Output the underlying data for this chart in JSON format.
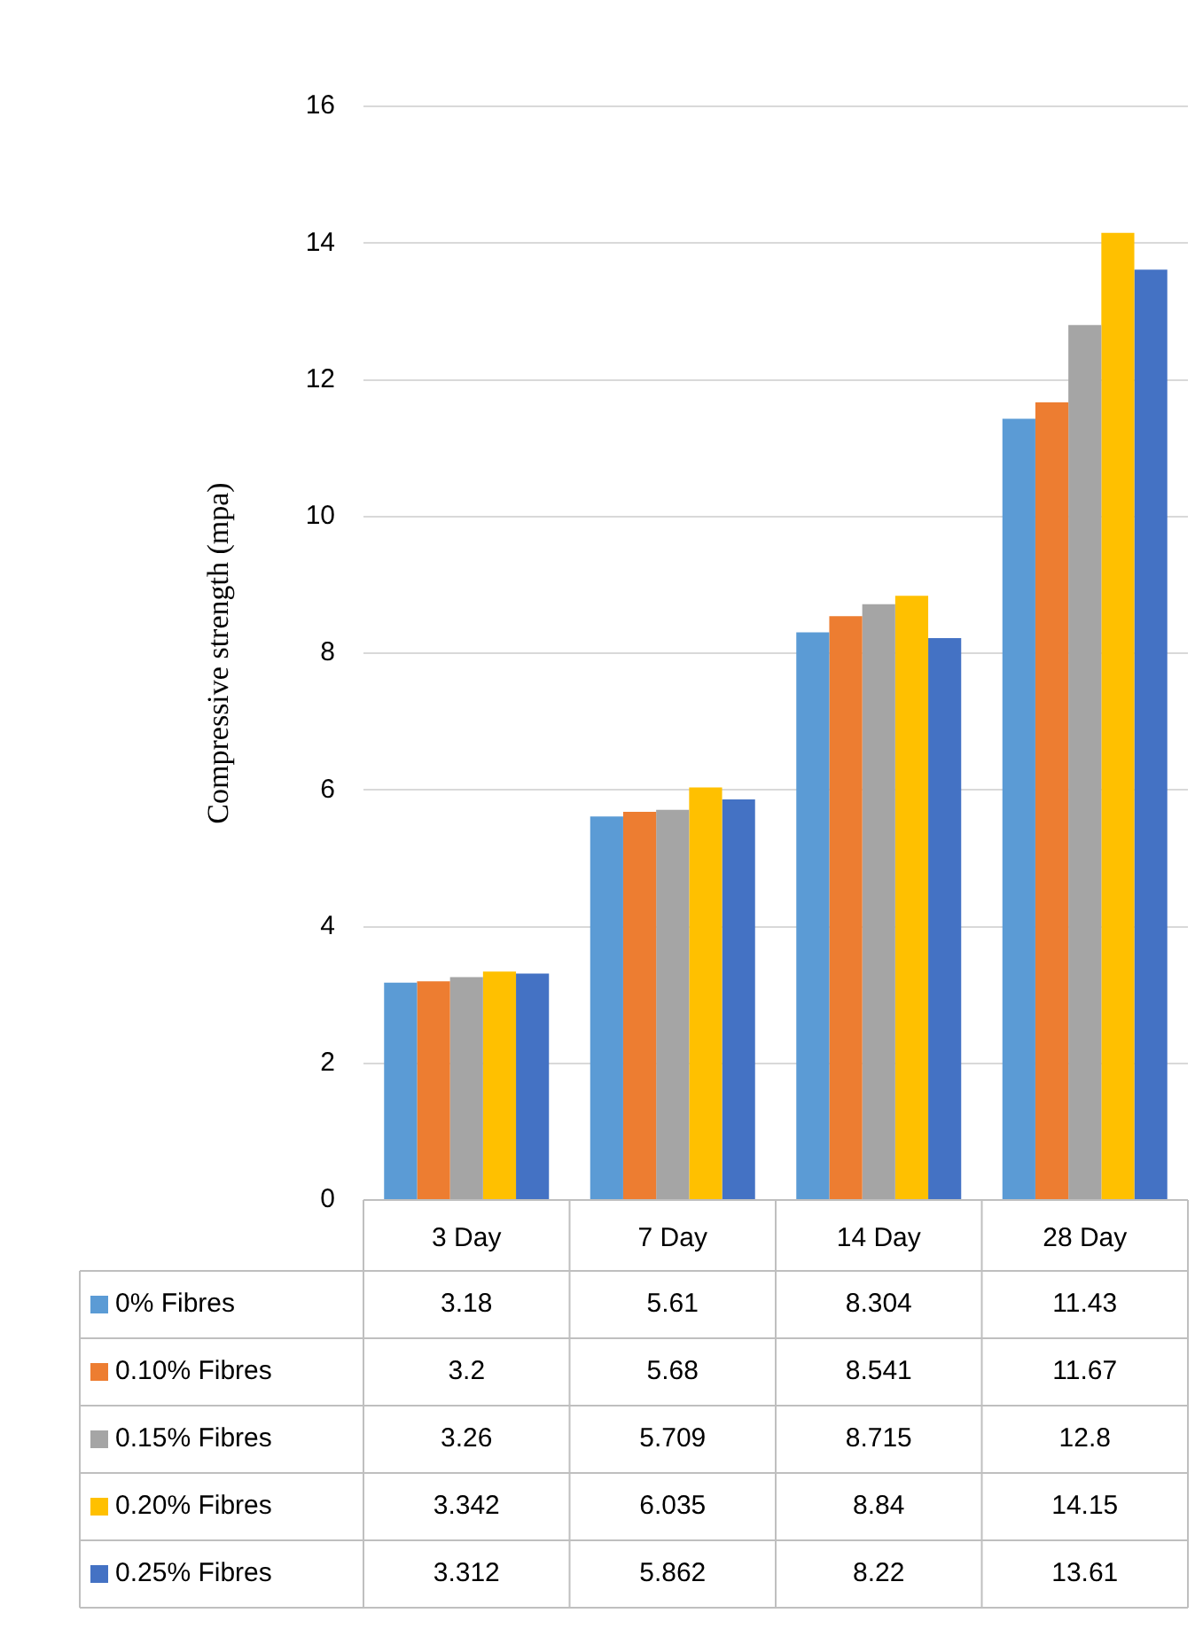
{
  "chart_data": {
    "type": "bar",
    "ylabel": "Compressive strength (mpa)",
    "categories": [
      "3 Day",
      "7 Day",
      "14 Day",
      "28 Day"
    ],
    "series": [
      {
        "name": "0% Fibres",
        "color": "#5b9bd5",
        "values": [
          3.18,
          5.61,
          8.304,
          11.43
        ]
      },
      {
        "name": "0.10% Fibres",
        "color": "#ed7d31",
        "values": [
          3.2,
          5.68,
          8.541,
          11.67
        ]
      },
      {
        "name": "0.15% Fibres",
        "color": "#a5a5a5",
        "values": [
          3.26,
          5.709,
          8.715,
          12.8
        ]
      },
      {
        "name": "0.20% Fibres",
        "color": "#ffc000",
        "values": [
          3.342,
          6.035,
          8.84,
          14.15
        ]
      },
      {
        "name": "0.25% Fibres",
        "color": "#4472c4",
        "values": [
          3.312,
          5.862,
          8.22,
          13.61
        ]
      }
    ],
    "ylim": [
      0,
      16
    ],
    "yticks": [
      0,
      2,
      4,
      6,
      8,
      10,
      12,
      14,
      16
    ],
    "grid": "y",
    "legend": "bottom",
    "data_labels": true
  }
}
